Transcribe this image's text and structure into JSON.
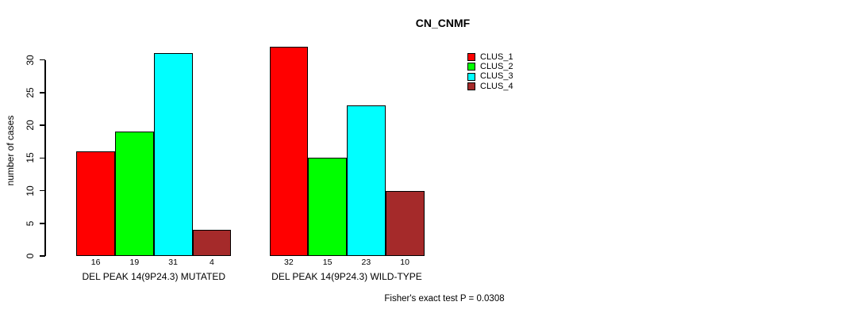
{
  "chart": {
    "title": "CN_CNMF",
    "ylabel": "number of cases",
    "footnote": "Fisher's exact test P = 0.0308"
  },
  "chart_data": {
    "type": "bar",
    "title": "CN_CNMF",
    "xlabel": "",
    "ylabel": "number of cases",
    "ylim": [
      0,
      32
    ],
    "yticks": [
      0,
      5,
      10,
      15,
      20,
      25,
      30
    ],
    "grid": false,
    "legend_position": "right",
    "categories": [
      "DEL PEAK 14(9P24.3) MUTATED",
      "DEL PEAK 14(9P24.3) WILD-TYPE"
    ],
    "series": [
      {
        "name": "CLUS_1",
        "color": "#FF0000",
        "values": [
          16,
          32
        ]
      },
      {
        "name": "CLUS_2",
        "color": "#00FF00",
        "values": [
          19,
          15
        ]
      },
      {
        "name": "CLUS_3",
        "color": "#00FFFF",
        "values": [
          31,
          23
        ]
      },
      {
        "name": "CLUS_4",
        "color": "#A52A2A",
        "values": [
          4,
          10
        ]
      }
    ],
    "bar_value_labels": [
      [
        "16",
        "19",
        "31",
        "4"
      ],
      [
        "32",
        "15",
        "23",
        "10"
      ]
    ],
    "annotation": "Fisher's exact test P = 0.0308"
  }
}
